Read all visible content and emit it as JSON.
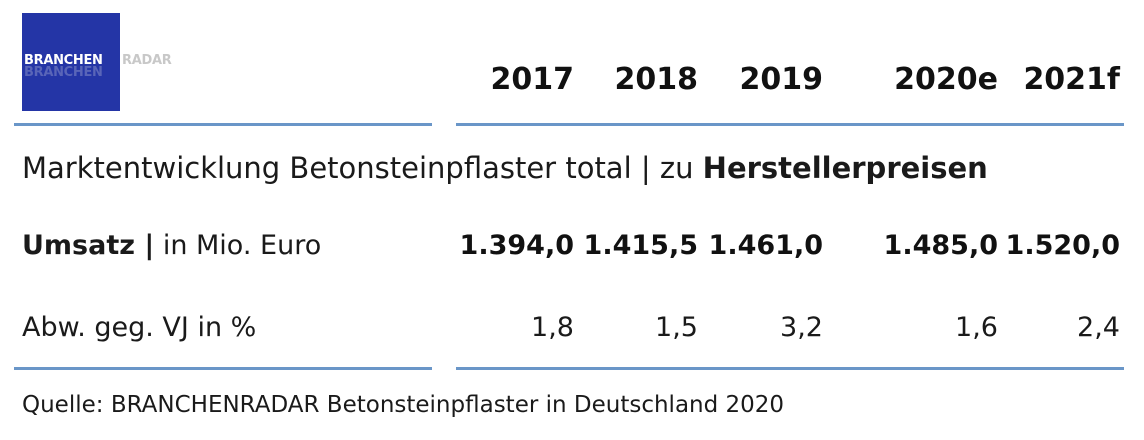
{
  "logo": {
    "part1": "BRANCHEN",
    "part2": "RADAR",
    "bg": "#2435a6"
  },
  "chart_data": {
    "type": "table",
    "title": "Marktentwicklung Betonsteinpflaster total",
    "title_separator": " | zu ",
    "title_bold": "Herstellerpreisen",
    "columns": [
      "2017",
      "2018",
      "2019",
      "2020e",
      "2021f"
    ],
    "rows": [
      {
        "label_bold": "Umsatz |",
        "label_rest": " in Mio. Euro",
        "values": [
          "1.394,0",
          "1.415,5",
          "1.461,0",
          "1.485,0",
          "1.520,0"
        ],
        "bold": true
      },
      {
        "label_bold": "",
        "label_rest": "Abw. geg. VJ in %",
        "values": [
          "1,8",
          "1,5",
          "3,2",
          "1,6",
          "2,4"
        ],
        "bold": false
      }
    ],
    "source": "Quelle: BRANCHENRADAR Betonsteinpflaster in Deutschland 2020"
  },
  "colors": {
    "rule": "#6a96c8",
    "text": "#1a1a1a"
  }
}
